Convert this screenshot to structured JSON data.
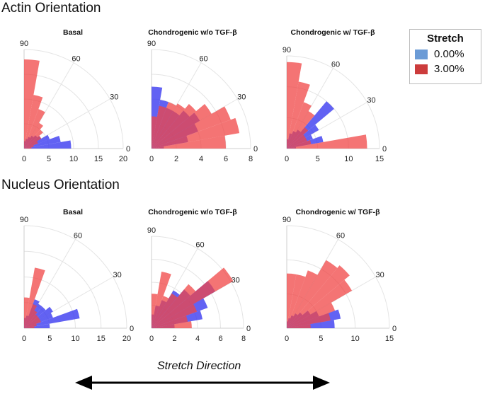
{
  "sections": {
    "actin": "Actin Orientation",
    "nucleus": "Nucleus Orientation"
  },
  "legend": {
    "title": "Stretch",
    "items": [
      {
        "label": "0.00%",
        "color": "#6b9bd6"
      },
      {
        "label": "3.00%",
        "color": "#cc3c3c"
      }
    ]
  },
  "series_style": [
    {
      "name": "0.00%",
      "fill": "#3b3bf0",
      "opacity": 0.8
    },
    {
      "name": "3.00%",
      "fill": "#f04646",
      "opacity": 0.75
    }
  ],
  "stretch_direction": "Stretch Direction",
  "chart_data": [
    {
      "type": "polar-bar",
      "title": "Basal",
      "section": "actin",
      "rmax": 20,
      "radial_ticks": [
        0,
        5,
        10,
        15,
        20
      ],
      "angle_ticks": [
        0,
        30,
        60,
        90
      ],
      "bin_width_deg": 10,
      "series": [
        {
          "name": "0.00%",
          "angles": [
            5,
            15,
            25,
            35,
            45,
            55,
            65,
            75,
            85
          ],
          "values": [
            9.5,
            7.5,
            5.5,
            4,
            3.5,
            3,
            2.5,
            2,
            1.5
          ]
        },
        {
          "name": "3.00%",
          "angles": [
            5,
            15,
            25,
            35,
            45,
            55,
            65,
            75,
            85
          ],
          "values": [
            1.5,
            2,
            3,
            4,
            5,
            6,
            8.5,
            11,
            18
          ]
        }
      ]
    },
    {
      "type": "polar-bar",
      "title": "Chondrogenic w/o TGF-β",
      "section": "actin",
      "rmax": 8,
      "radial_ticks": [
        0,
        2,
        4,
        6,
        8
      ],
      "angle_ticks": [
        0,
        30,
        60,
        90
      ],
      "bin_width_deg": 10,
      "series": [
        {
          "name": "0.00%",
          "angles": [
            5,
            15,
            25,
            35,
            45,
            55,
            65,
            75,
            85
          ],
          "values": [
            1,
            3,
            4,
            4.5,
            4,
            3.5,
            3.5,
            4,
            5
          ]
        },
        {
          "name": "3.00%",
          "angles": [
            5,
            15,
            25,
            35,
            45,
            55,
            65,
            75,
            85
          ],
          "values": [
            6,
            7.2,
            6.8,
            5.6,
            4.7,
            4.2,
            4,
            3.5,
            2.6
          ]
        }
      ]
    },
    {
      "type": "polar-bar",
      "title": "Chondrogenic w/ TGF-β",
      "section": "actin",
      "rmax": 15,
      "radial_ticks": [
        0,
        5,
        10,
        15
      ],
      "angle_ticks": [
        0,
        30,
        60,
        90
      ],
      "bin_width_deg": 10,
      "series": [
        {
          "name": "0.00%",
          "angles": [
            5,
            15,
            25,
            35,
            45,
            55,
            65,
            75,
            85
          ],
          "values": [
            1.5,
            6,
            4.5,
            6,
            10,
            3.5,
            3,
            2.5,
            1.5
          ]
        },
        {
          "name": "3.00%",
          "angles": [
            5,
            15,
            25,
            35,
            45,
            55,
            65,
            75,
            85
          ],
          "values": [
            13,
            4,
            3.5,
            3.5,
            4.5,
            7,
            8,
            11,
            14
          ]
        }
      ]
    },
    {
      "type": "polar-bar",
      "title": "Basal",
      "section": "nucleus",
      "rmax": 20,
      "radial_ticks": [
        0,
        5,
        10,
        15,
        20
      ],
      "angle_ticks": [
        0,
        30,
        60,
        90
      ],
      "bin_width_deg": 10,
      "series": [
        {
          "name": "0.00%",
          "angles": [
            5,
            15,
            25,
            35,
            45,
            55,
            65,
            75,
            85
          ],
          "values": [
            5,
            11,
            6,
            6.5,
            5.5,
            5.5,
            6,
            2.5,
            2
          ]
        },
        {
          "name": "3.00%",
          "angles": [
            5,
            15,
            25,
            35,
            45,
            55,
            65,
            75,
            85
          ],
          "values": [
            2,
            2.5,
            3.5,
            3.5,
            3.5,
            4,
            5,
            12,
            6
          ]
        }
      ]
    },
    {
      "type": "polar-bar",
      "title": "Chondrogenic w/o TGF-β",
      "section": "nucleus",
      "rmax": 8,
      "radial_ticks": [
        0,
        2,
        4,
        6,
        8
      ],
      "angle_ticks": [
        0,
        30,
        60,
        90
      ],
      "bin_width_deg": 10,
      "series": [
        {
          "name": "0.00%",
          "angles": [
            5,
            15,
            25,
            35,
            45,
            55,
            65,
            75,
            85
          ],
          "values": [
            2,
            4.5,
            5.2,
            6.4,
            4.4,
            3.8,
            2.6,
            2,
            1.2
          ]
        },
        {
          "name": "3.00%",
          "angles": [
            5,
            15,
            25,
            35,
            45,
            55,
            65,
            75,
            85
          ],
          "values": [
            3.5,
            3.2,
            4.2,
            8.2,
            5,
            3.5,
            3,
            5,
            3
          ]
        }
      ]
    },
    {
      "type": "polar-bar",
      "title": "Chondrogenic w/ TGF-β",
      "section": "nucleus",
      "rmax": 15,
      "radial_ticks": [
        0,
        5,
        10,
        15
      ],
      "angle_ticks": [
        0,
        30,
        60,
        90
      ],
      "bin_width_deg": 10,
      "series": [
        {
          "name": "0.00%",
          "angles": [
            5,
            15,
            25,
            35,
            45,
            55,
            65,
            75,
            85
          ],
          "values": [
            7,
            8,
            5,
            4,
            3,
            2.5,
            2,
            1.5,
            1
          ]
        },
        {
          "name": "3.00%",
          "angles": [
            5,
            15,
            25,
            35,
            45,
            55,
            65,
            75,
            85
          ],
          "values": [
            3.5,
            6.5,
            7.5,
            11,
            12,
            11.5,
            9,
            8,
            8
          ]
        }
      ]
    }
  ]
}
